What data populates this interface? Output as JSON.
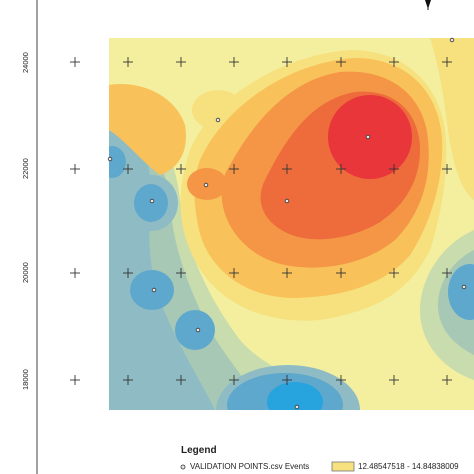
{
  "map": {
    "y_ticks": [
      "24000",
      "22000",
      "20000",
      "18000"
    ],
    "colors": {
      "red": "#e8363a",
      "orange_red": "#ee6b3c",
      "orange": "#f49645",
      "light_orange": "#f8c15a",
      "yellow": "#f7e07e",
      "pale_yellow": "#f4ef9f",
      "pale_green": "#c8dcae",
      "green_grey": "#a6c8b5",
      "grey_blue": "#8fbcc4",
      "blue": "#5ea7cd",
      "bright_blue": "#27a3de"
    }
  },
  "legend": {
    "title": "Legend",
    "points_label": "VALIDATION POINTS.csv Events",
    "class_label": "12.48547518 - 14.84838009",
    "class_color": "#f7e07e"
  },
  "icons": {
    "north_arrow": "north-arrow-icon",
    "grid_cross": "crosshair-icon",
    "validation_point": "point-marker-icon"
  }
}
